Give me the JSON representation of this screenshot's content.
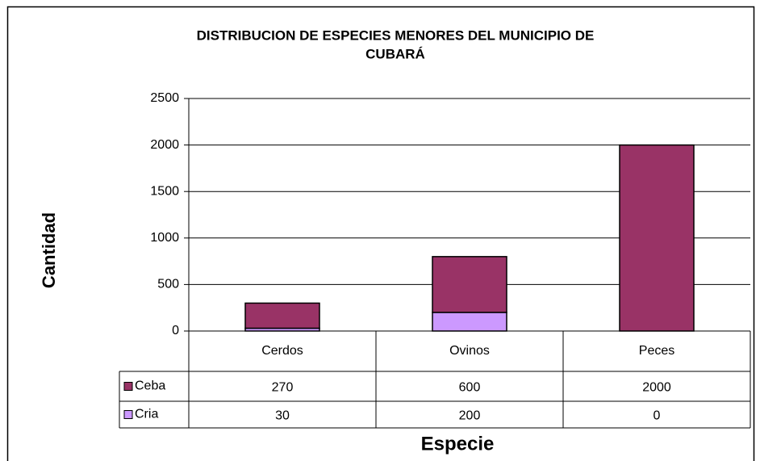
{
  "chart_data": {
    "type": "stacked-bar",
    "title": [
      "DISTRIBUCION DE ESPECIES MENORES DEL MUNICIPIO DE",
      "CUBARÁ"
    ],
    "y_label": "Cantidad",
    "x_label": "Especie",
    "categories": [
      "Cerdos",
      "Ovinos",
      "Peces"
    ],
    "series": [
      {
        "name": "Ceba",
        "color": "#993366",
        "values": [
          270,
          600,
          2000
        ]
      },
      {
        "name": "Cria",
        "color": "#cc99ff",
        "values": [
          30,
          200,
          0
        ]
      }
    ],
    "ylim": [
      0,
      2500
    ],
    "yticks": [
      0,
      500,
      1000,
      1500,
      2000,
      2500
    ],
    "grid": true
  }
}
